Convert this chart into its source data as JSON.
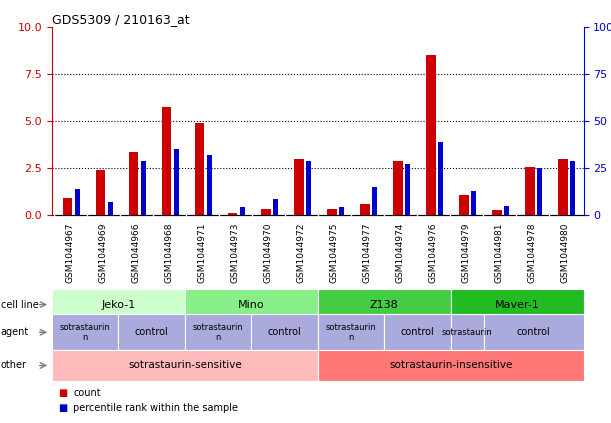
{
  "title": "GDS5309 / 210163_at",
  "samples": [
    "GSM1044967",
    "GSM1044969",
    "GSM1044966",
    "GSM1044968",
    "GSM1044971",
    "GSM1044973",
    "GSM1044970",
    "GSM1044972",
    "GSM1044975",
    "GSM1044977",
    "GSM1044974",
    "GSM1044976",
    "GSM1044979",
    "GSM1044981",
    "GSM1044978",
    "GSM1044980"
  ],
  "count_values": [
    0.9,
    2.4,
    3.35,
    5.75,
    4.9,
    0.12,
    0.35,
    3.0,
    0.35,
    0.6,
    2.9,
    8.5,
    1.1,
    0.28,
    2.55,
    3.0
  ],
  "percentile_values": [
    14,
    7,
    29,
    35,
    32,
    4.5,
    8.5,
    29,
    4.5,
    15,
    27,
    39,
    13,
    5,
    25,
    29
  ],
  "ylim_left": [
    0,
    10
  ],
  "ylim_right": [
    0,
    100
  ],
  "yticks_left": [
    0,
    2.5,
    5,
    7.5,
    10
  ],
  "yticks_right": [
    0,
    25,
    50,
    75,
    100
  ],
  "cell_lines": [
    {
      "label": "Jeko-1",
      "start": 0,
      "end": 3,
      "color": "#ccffcc"
    },
    {
      "label": "Mino",
      "start": 4,
      "end": 7,
      "color": "#88ee88"
    },
    {
      "label": "Z138",
      "start": 8,
      "end": 11,
      "color": "#44cc44"
    },
    {
      "label": "Maver-1",
      "start": 12,
      "end": 15,
      "color": "#22bb22"
    }
  ],
  "agents": [
    {
      "label": "sotrastaurin\nn",
      "start": 0,
      "end": 1
    },
    {
      "label": "control",
      "start": 2,
      "end": 3
    },
    {
      "label": "sotrastaurin\nn",
      "start": 4,
      "end": 5
    },
    {
      "label": "control",
      "start": 6,
      "end": 7
    },
    {
      "label": "sotrastaurin\nn",
      "start": 8,
      "end": 9
    },
    {
      "label": "control",
      "start": 10,
      "end": 11
    },
    {
      "label": "sotrastaurin",
      "start": 12,
      "end": 12
    },
    {
      "label": "control",
      "start": 13,
      "end": 15
    }
  ],
  "agent_color": "#aaaadd",
  "other": [
    {
      "label": "sotrastaurin-sensitive",
      "start": 0,
      "end": 7,
      "color": "#ffbbbb"
    },
    {
      "label": "sotrastaurin-insensitive",
      "start": 8,
      "end": 15,
      "color": "#ff7777"
    }
  ],
  "bar_color": "#cc0000",
  "pct_color": "#0000cc",
  "left_tick_color": "#cc0000",
  "right_tick_color": "#0000cc",
  "bg_color": "#ffffff",
  "sample_bg_color": "#cccccc",
  "row_label_color": "#555555"
}
